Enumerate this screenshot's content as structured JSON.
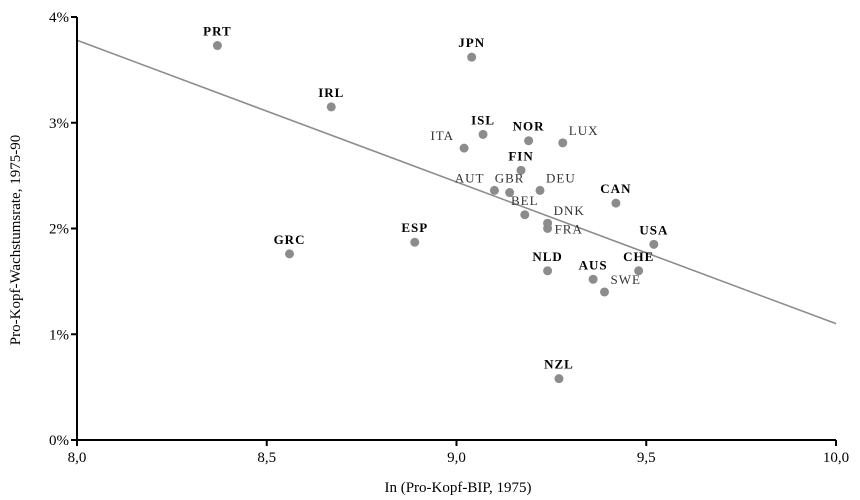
{
  "chart_data": {
    "type": "scatter",
    "xlabel": "In (Pro-Kopf-BIP, 1975)",
    "ylabel": "Pro-Kopf-Wachstumsrate, 1975-90",
    "xlim": [
      8.0,
      10.0
    ],
    "ylim": [
      0,
      4
    ],
    "x_ticks": [
      8.0,
      8.5,
      9.0,
      9.5,
      10.0
    ],
    "x_tick_labels": [
      "8,0",
      "8,5",
      "9,0",
      "9,5",
      "10,0"
    ],
    "y_ticks": [
      0,
      1,
      2,
      3,
      4
    ],
    "y_tick_labels": [
      "0%",
      "1%",
      "2%",
      "3%",
      "4%"
    ],
    "grid": false,
    "marker_color": "#8c8c8c",
    "line_color": "#8c8c8c",
    "trend_line": {
      "x": [
        8.0,
        10.0
      ],
      "y": [
        3.78,
        1.1
      ]
    },
    "points": [
      {
        "label": "PRT",
        "x": 8.37,
        "y": 3.73,
        "bold": true,
        "label_pos": "top"
      },
      {
        "label": "JPN",
        "x": 9.04,
        "y": 3.62,
        "bold": true,
        "label_pos": "top"
      },
      {
        "label": "IRL",
        "x": 8.67,
        "y": 3.15,
        "bold": true,
        "label_pos": "top"
      },
      {
        "label": "ISL",
        "x": 9.07,
        "y": 2.89,
        "bold": true,
        "label_pos": "top"
      },
      {
        "label": "NOR",
        "x": 9.19,
        "y": 2.83,
        "bold": true,
        "label_pos": "top"
      },
      {
        "label": "LUX",
        "x": 9.28,
        "y": 2.81,
        "bold": false,
        "label_pos": "top-right"
      },
      {
        "label": "ITA",
        "x": 9.02,
        "y": 2.76,
        "bold": false,
        "label_pos": "top-left"
      },
      {
        "label": "FIN",
        "x": 9.17,
        "y": 2.55,
        "bold": true,
        "label_pos": "top"
      },
      {
        "label": "AUT",
        "x": 9.1,
        "y": 2.36,
        "bold": false,
        "label_pos": "top-left"
      },
      {
        "label": "GBR",
        "x": 9.14,
        "y": 2.34,
        "bold": false,
        "label_pos": "top"
      },
      {
        "label": "DEU",
        "x": 9.22,
        "y": 2.36,
        "bold": false,
        "label_pos": "top-right"
      },
      {
        "label": "CAN",
        "x": 9.42,
        "y": 2.24,
        "bold": true,
        "label_pos": "top"
      },
      {
        "label": "BEL",
        "x": 9.18,
        "y": 2.13,
        "bold": false,
        "label_pos": "top"
      },
      {
        "label": "DNK",
        "x": 9.24,
        "y": 2.05,
        "bold": false,
        "label_pos": "top-right"
      },
      {
        "label": "FRA",
        "x": 9.24,
        "y": 2.0,
        "bold": false,
        "label_pos": "right"
      },
      {
        "label": "USA",
        "x": 9.52,
        "y": 1.85,
        "bold": true,
        "label_pos": "top"
      },
      {
        "label": "ESP",
        "x": 8.89,
        "y": 1.87,
        "bold": true,
        "label_pos": "top"
      },
      {
        "label": "GRC",
        "x": 8.56,
        "y": 1.76,
        "bold": true,
        "label_pos": "top"
      },
      {
        "label": "NLD",
        "x": 9.24,
        "y": 1.6,
        "bold": true,
        "label_pos": "top"
      },
      {
        "label": "CHE",
        "x": 9.48,
        "y": 1.6,
        "bold": true,
        "label_pos": "top"
      },
      {
        "label": "AUS",
        "x": 9.36,
        "y": 1.52,
        "bold": true,
        "label_pos": "top"
      },
      {
        "label": "SWE",
        "x": 9.39,
        "y": 1.4,
        "bold": false,
        "label_pos": "top-right"
      },
      {
        "label": "NZL",
        "x": 9.27,
        "y": 0.58,
        "bold": true,
        "label_pos": "top"
      }
    ]
  }
}
